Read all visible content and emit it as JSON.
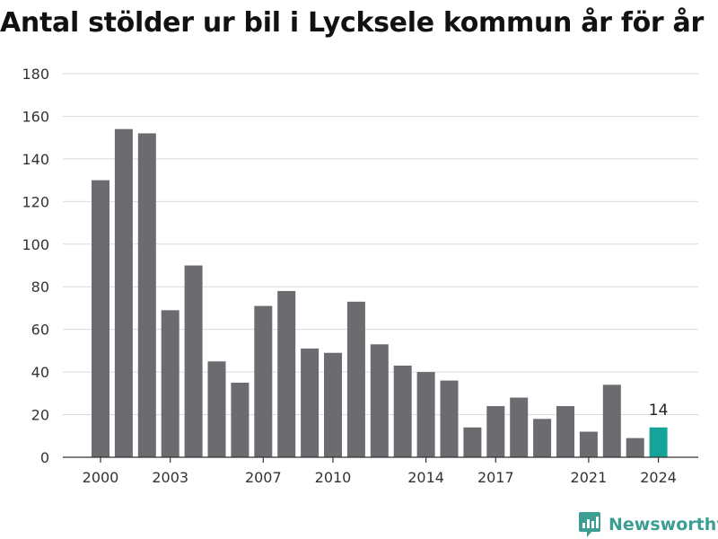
{
  "title": "Antal stölder ur bil i Lycksele kommun år för år",
  "brand": {
    "name": "Newsworthy",
    "icon": "newsworthy-logo-icon",
    "color": "#3c9d92"
  },
  "chart_data": {
    "type": "bar",
    "title": "Antal stölder ur bil i Lycksele kommun år för år",
    "xlabel": "",
    "ylabel": "",
    "categories": [
      "2000",
      "2001",
      "2002",
      "2003",
      "2004",
      "2005",
      "2006",
      "2007",
      "2008",
      "2009",
      "2010",
      "2011",
      "2012",
      "2013",
      "2014",
      "2015",
      "2016",
      "2017",
      "2018",
      "2019",
      "2020",
      "2021",
      "2022",
      "2023",
      "2024"
    ],
    "values": [
      130,
      154,
      152,
      69,
      90,
      45,
      35,
      71,
      78,
      51,
      49,
      73,
      53,
      43,
      40,
      36,
      14,
      24,
      28,
      18,
      24,
      12,
      34,
      9,
      14
    ],
    "x_tick_labels": [
      "2000",
      "2003",
      "2007",
      "2010",
      "2014",
      "2017",
      "2021",
      "2024"
    ],
    "y_ticks": [
      0,
      20,
      40,
      60,
      80,
      100,
      120,
      140,
      160,
      180
    ],
    "ylim": [
      0,
      180
    ],
    "grid": true,
    "bar_color": "#6c6b70",
    "highlight_color": "#16a39a",
    "highlight_index": 24,
    "annotations": [
      {
        "category": "2024",
        "text": "14"
      }
    ]
  }
}
